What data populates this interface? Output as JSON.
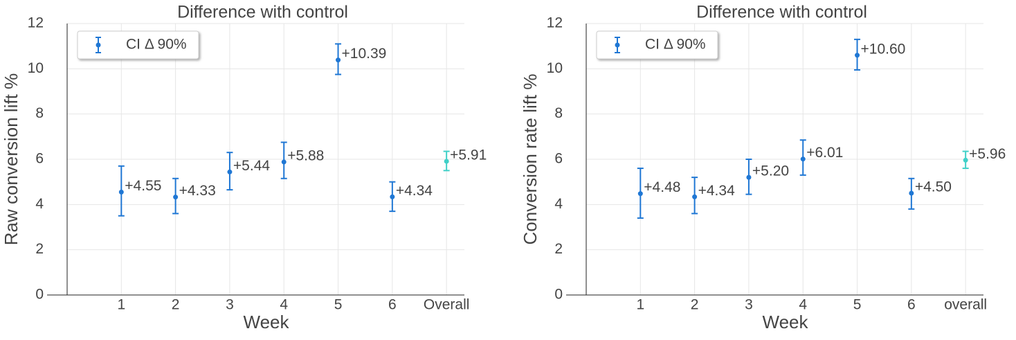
{
  "chart_data": [
    {
      "type": "errorbar",
      "title": "Difference with control",
      "xlabel": "Week",
      "ylabel": "Raw conversion lift %",
      "categories": [
        "1",
        "2",
        "3",
        "4",
        "5",
        "6",
        "Overall"
      ],
      "series": [
        {
          "name": "CI Δ 90%",
          "values": [
            4.55,
            4.33,
            5.44,
            5.88,
            10.39,
            4.34,
            5.91
          ],
          "value_labels": [
            "+4.55",
            "+4.33",
            "+5.44",
            "+5.88",
            "+10.39",
            "+4.34",
            "+5.91"
          ],
          "lower": [
            3.5,
            3.6,
            4.65,
            5.15,
            9.75,
            3.7,
            5.5
          ],
          "upper": [
            5.7,
            5.15,
            6.3,
            6.75,
            11.1,
            5.0,
            6.35
          ],
          "colors": [
            "#1f77d4",
            "#1f77d4",
            "#1f77d4",
            "#1f77d4",
            "#1f77d4",
            "#1f77d4",
            "#40d0c8"
          ]
        }
      ],
      "ylim": [
        0,
        12
      ],
      "yticks": [
        0,
        2,
        4,
        6,
        8,
        10,
        12
      ],
      "grid": true,
      "legend": "upper left"
    },
    {
      "type": "errorbar",
      "title": "Difference with control",
      "xlabel": "Week",
      "ylabel": "Conversion rate lift %",
      "categories": [
        "1",
        "2",
        "3",
        "4",
        "5",
        "6",
        "overall"
      ],
      "series": [
        {
          "name": "CI Δ 90%",
          "values": [
            4.48,
            4.34,
            5.2,
            6.01,
            10.6,
            4.5,
            5.96
          ],
          "value_labels": [
            "+4.48",
            "+4.34",
            "+5.20",
            "+6.01",
            "+10.60",
            "+4.50",
            "+5.96"
          ],
          "lower": [
            3.4,
            3.6,
            4.45,
            5.3,
            9.95,
            3.8,
            5.6
          ],
          "upper": [
            5.6,
            5.2,
            6.0,
            6.85,
            11.3,
            5.15,
            6.35
          ],
          "colors": [
            "#1f77d4",
            "#1f77d4",
            "#1f77d4",
            "#1f77d4",
            "#1f77d4",
            "#1f77d4",
            "#40d0c8"
          ]
        }
      ],
      "ylim": [
        0,
        12
      ],
      "yticks": [
        0,
        2,
        4,
        6,
        8,
        10,
        12
      ],
      "grid": true,
      "legend": "upper left"
    }
  ]
}
